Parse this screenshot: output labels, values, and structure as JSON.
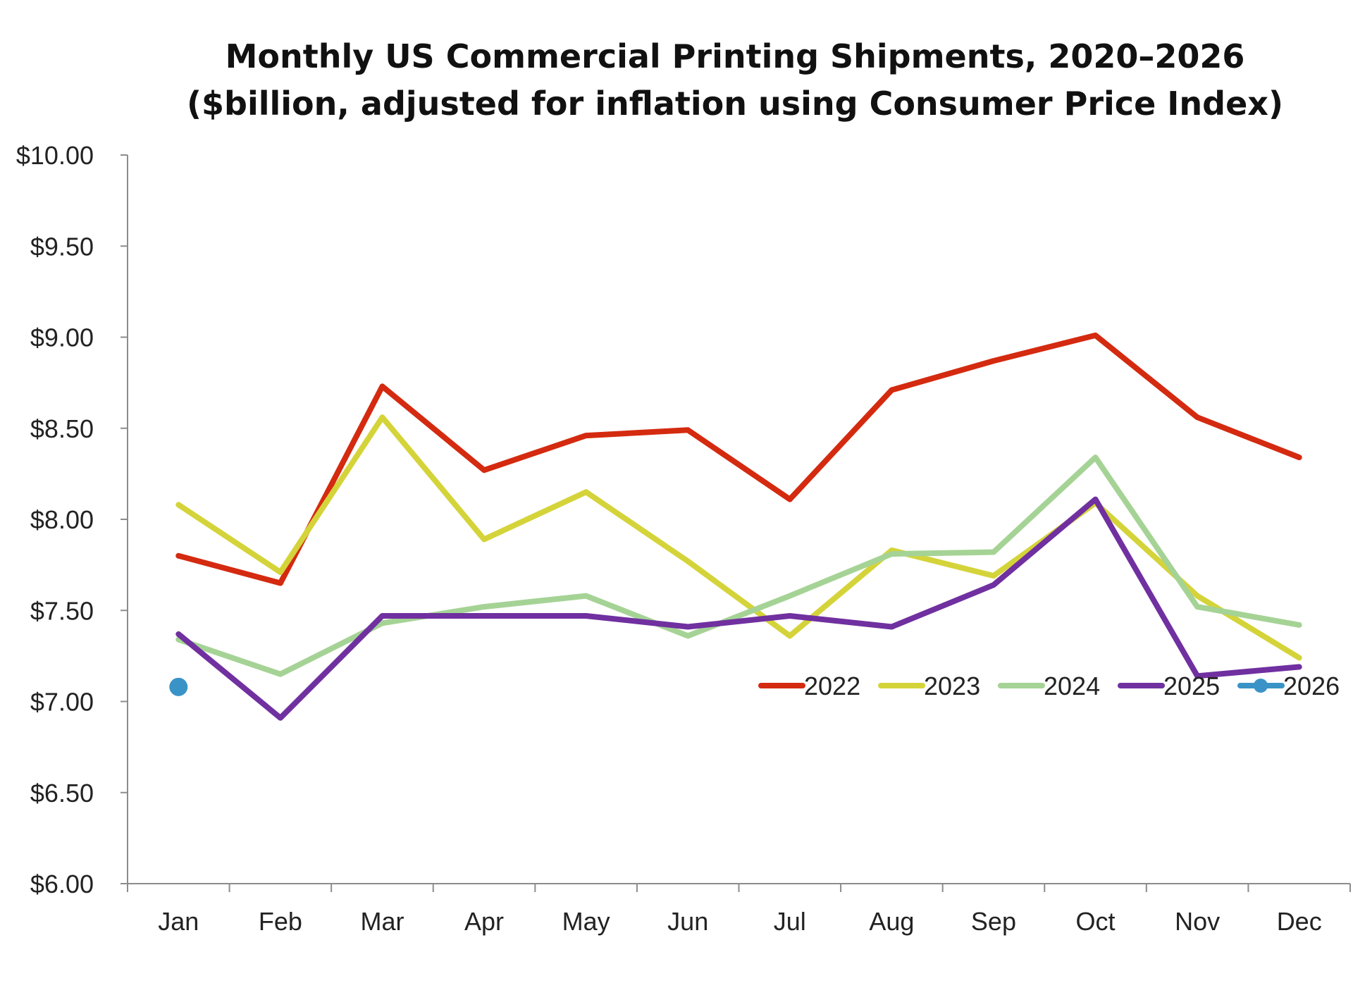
{
  "chart_data": {
    "type": "line",
    "title_lines": [
      "Monthly US Commercial Printing Shipments, 2020–2026",
      "($billion, adjusted for inflation using Consumer Price Index)"
    ],
    "xlabel": "",
    "ylabel": "",
    "categories": [
      "Jan",
      "Feb",
      "Mar",
      "Apr",
      "May",
      "Jun",
      "Jul",
      "Aug",
      "Sep",
      "Oct",
      "Nov",
      "Dec"
    ],
    "ylim": [
      6.0,
      10.0
    ],
    "y_ticks": [
      6.0,
      6.5,
      7.0,
      7.5,
      8.0,
      8.5,
      9.0,
      9.5,
      10.0
    ],
    "y_tick_labels": [
      "$6.00",
      "$6.50",
      "$7.00",
      "$7.50",
      "$8.00",
      "$8.50",
      "$9.00",
      "$9.50",
      "$10.00"
    ],
    "grid": false,
    "legend_position": "right, inside plot",
    "series": [
      {
        "name": "2022",
        "color": "#d42a10",
        "values": [
          7.8,
          7.65,
          8.73,
          8.27,
          8.46,
          8.49,
          8.11,
          8.71,
          8.87,
          9.01,
          8.56,
          8.34
        ]
      },
      {
        "name": "2023",
        "color": "#d4d43a",
        "values": [
          8.08,
          7.71,
          8.56,
          7.89,
          8.15,
          7.77,
          7.36,
          7.83,
          7.69,
          8.09,
          7.58,
          7.24
        ]
      },
      {
        "name": "2024",
        "color": "#a5d395",
        "values": [
          7.34,
          7.15,
          7.43,
          7.52,
          7.58,
          7.36,
          7.58,
          7.81,
          7.82,
          8.34,
          7.52,
          7.42
        ]
      },
      {
        "name": "2025",
        "color": "#7030a0",
        "values": [
          7.37,
          6.91,
          7.47,
          7.47,
          7.47,
          7.41,
          7.47,
          7.41,
          7.64,
          8.11,
          7.14,
          7.19
        ]
      },
      {
        "name": "2026",
        "color": "#3a93c7",
        "marker": "circle",
        "values": [
          7.08,
          null,
          null,
          null,
          null,
          null,
          null,
          null,
          null,
          null,
          null,
          null
        ]
      }
    ]
  }
}
